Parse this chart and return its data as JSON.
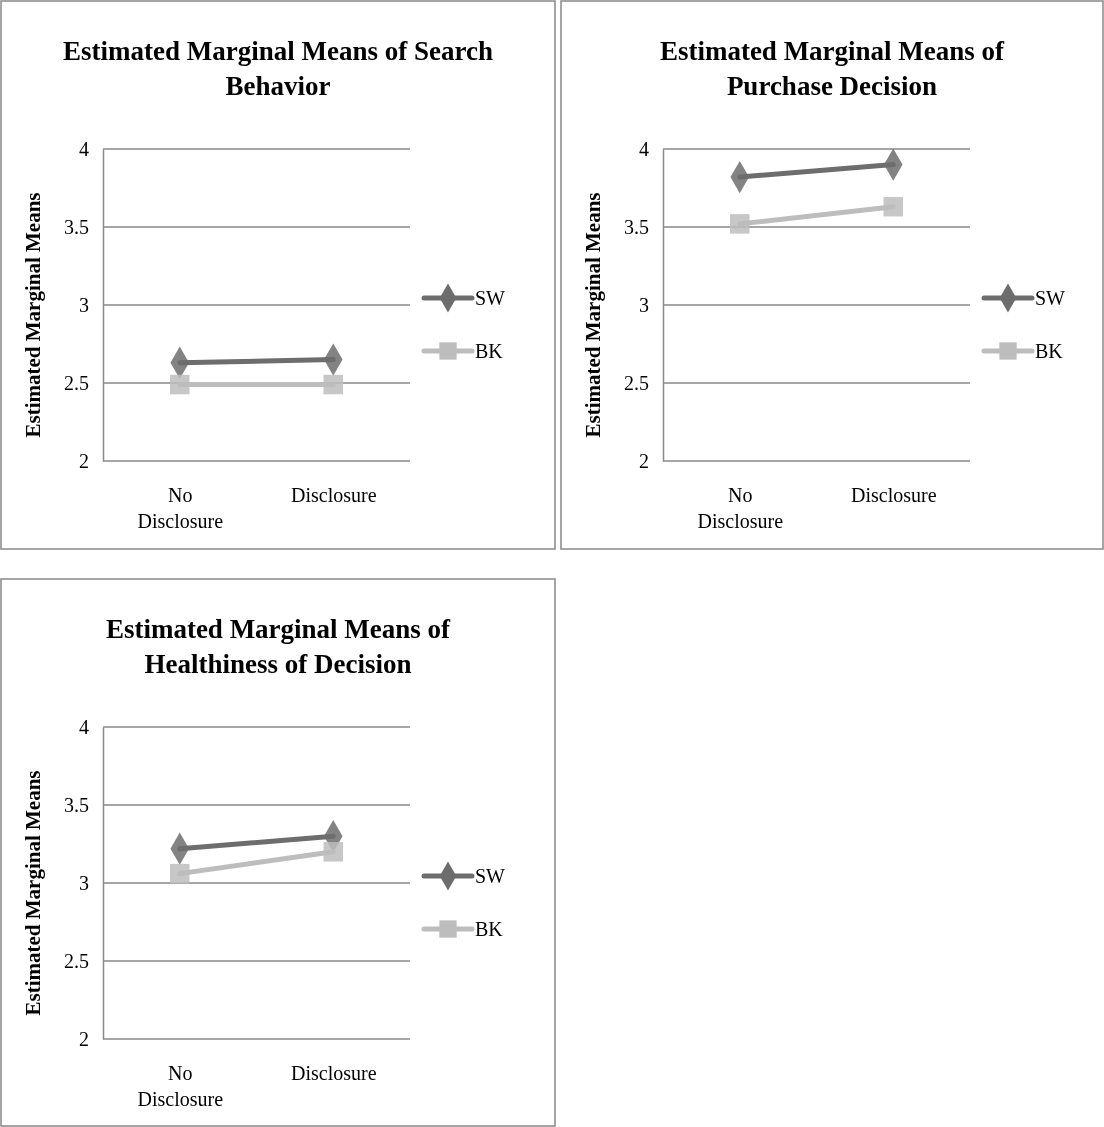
{
  "chart_data": [
    {
      "type": "line",
      "title": "Estimated Marginal Means of Search Behavior",
      "ylabel": "Estimated Marginal Means",
      "categories": [
        "No Disclosure",
        "Disclosure"
      ],
      "ylim": [
        2,
        4
      ],
      "yticks": [
        2,
        2.5,
        3,
        3.5,
        4
      ],
      "grid": "y",
      "legend": "right",
      "marker": "diamond",
      "series": [
        {
          "name": "SW",
          "color": "#6d6d6d",
          "values": [
            2.63,
            2.65
          ]
        },
        {
          "name": "BK",
          "color": "#bdbdbd",
          "marker": "square",
          "values": [
            2.49,
            2.49
          ]
        }
      ]
    },
    {
      "type": "line",
      "title": "Estimated Marginal Means of Purchase Decision",
      "ylabel": "Estimated Marginal Means",
      "categories": [
        "No Disclosure",
        "Disclosure"
      ],
      "ylim": [
        2,
        4
      ],
      "yticks": [
        2,
        2.5,
        3,
        3.5,
        4
      ],
      "grid": "y",
      "legend": "right",
      "marker": "diamond",
      "series": [
        {
          "name": "SW",
          "color": "#6d6d6d",
          "values": [
            3.82,
            3.9
          ]
        },
        {
          "name": "BK",
          "color": "#bdbdbd",
          "marker": "square",
          "values": [
            3.52,
            3.63
          ]
        }
      ]
    },
    {
      "type": "line",
      "title": "Estimated Marginal Means of Healthiness of Decision",
      "ylabel": "Estimated Marginal Means",
      "categories": [
        "No Disclosure",
        "Disclosure"
      ],
      "ylim": [
        2,
        4
      ],
      "yticks": [
        2,
        2.5,
        3,
        3.5,
        4
      ],
      "grid": "y",
      "legend": "right",
      "marker": "diamond",
      "series": [
        {
          "name": "SW",
          "color": "#6d6d6d",
          "values": [
            3.22,
            3.3
          ]
        },
        {
          "name": "BK",
          "color": "#bdbdbd",
          "marker": "square",
          "values": [
            3.06,
            3.2
          ]
        }
      ]
    }
  ]
}
